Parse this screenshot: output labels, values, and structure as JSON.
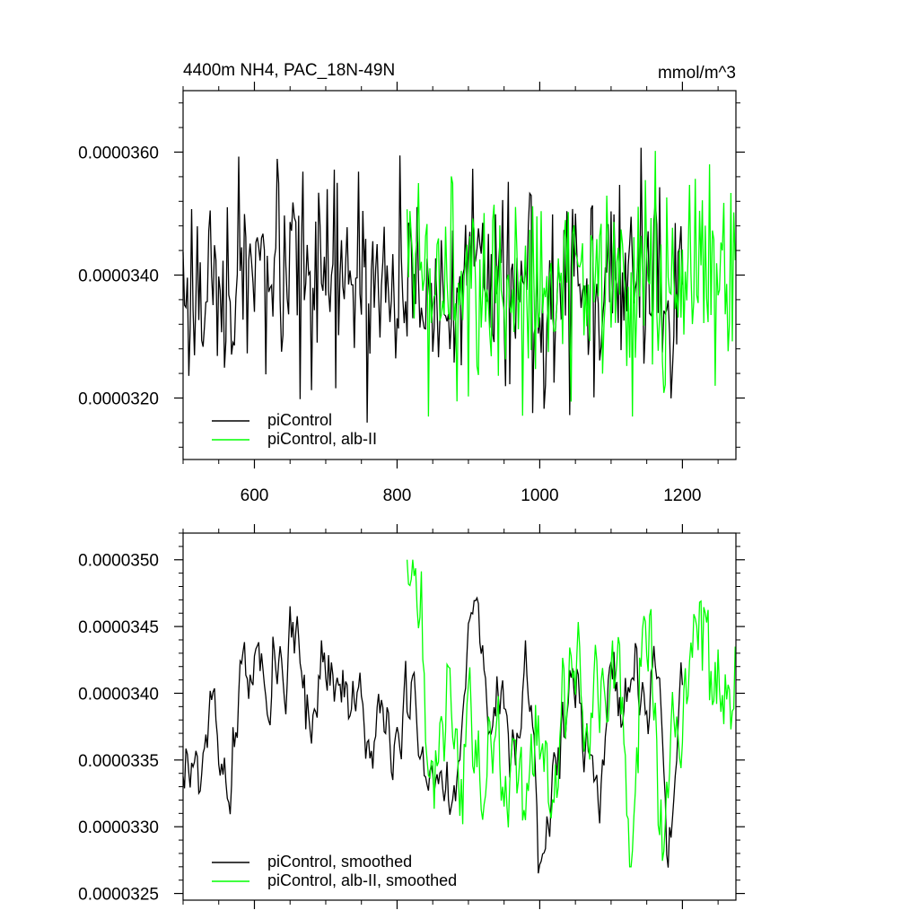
{
  "chart_data": [
    {
      "type": "line",
      "title": "4400m NH4, PAC_18N-49N",
      "units": "mmol/m^3",
      "xlim": [
        500,
        1275
      ],
      "ylim": [
        3.1e-05,
        3.7e-05
      ],
      "x_ticks": [
        600,
        800,
        1000,
        1200
      ],
      "x_tick_labels": [
        "600",
        "800",
        "1000",
        "1200"
      ],
      "y_ticks": [
        3.2e-05,
        3.4e-05,
        3.6e-05
      ],
      "y_tick_labels": [
        "0.0000320",
        "0.0000340",
        "0.0000360"
      ],
      "legend_position": "bottom-left",
      "series": [
        {
          "name": "piControl",
          "color": "#000000",
          "x_start": 500,
          "x_end": 1200,
          "x_step": 2,
          "mean": 3.38e-05,
          "std": 8e-07,
          "seed": 17,
          "min": 3.16e-05,
          "max": 3.64e-05
        },
        {
          "name": "piControl, alb-II",
          "color": "#00ff00",
          "x_start": 814,
          "x_end": 1275,
          "x_step": 2,
          "mean": 3.38e-05,
          "std": 9e-07,
          "seed": 42,
          "min": 3.17e-05,
          "max": 3.63e-05
        }
      ]
    },
    {
      "type": "line",
      "title": "",
      "units": "",
      "xlim": [
        500,
        1275
      ],
      "ylim": [
        3.245e-05,
        3.52e-05
      ],
      "x_ticks": [
        600,
        800,
        1000,
        1200
      ],
      "x_tick_labels": [],
      "y_ticks": [
        3.25e-05,
        3.3e-05,
        3.35e-05,
        3.4e-05,
        3.45e-05,
        3.5e-05
      ],
      "y_tick_labels": [
        "0.0000325",
        "0.0000330",
        "0.0000335",
        "0.0000340",
        "0.0000345",
        "0.0000350"
      ],
      "legend_position": "bottom-left",
      "series": [
        {
          "name": "piControl, smoothed",
          "color": "#000000",
          "x_start": 500,
          "x_end": 1200,
          "x_step": 2,
          "mean": 3.38e-05,
          "std": 4e-07,
          "seed": 17,
          "min": 3.26e-05,
          "max": 3.5e-05
        },
        {
          "name": "piControl, alb-II, smoothed",
          "color": "#00ff00",
          "x_start": 814,
          "x_end": 1275,
          "x_step": 2,
          "mean": 3.38e-05,
          "std": 5e-07,
          "seed": 42,
          "min": 3.27e-05,
          "max": 3.5e-05
        }
      ]
    }
  ]
}
